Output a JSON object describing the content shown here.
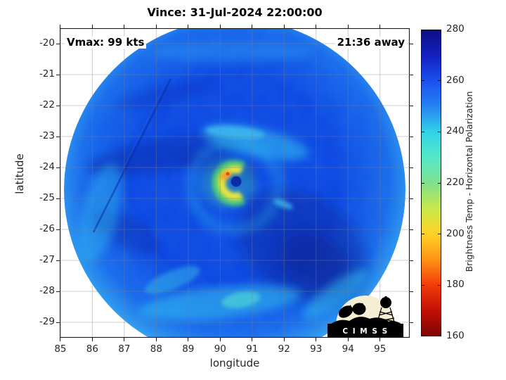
{
  "header": {
    "title": "Vince: 31-Jul-2024 22:00:00"
  },
  "plot": {
    "annotation_left": "Vmax: 99 kts",
    "annotation_right": "21:36 away"
  },
  "axes": {
    "xlabel": "longitude",
    "ylabel": "latitude",
    "x_ticks": [
      85,
      86,
      87,
      88,
      89,
      90,
      91,
      92,
      93,
      94,
      95
    ],
    "y_ticks": [
      -20,
      -21,
      -22,
      -23,
      -24,
      -25,
      -26,
      -27,
      -28,
      -29
    ],
    "x_range": [
      84.98,
      95.93
    ],
    "y_range": [
      -29.5,
      -19.5
    ]
  },
  "colorbar": {
    "label": "Brightness Temp - Horizontal Polarization",
    "min": 160,
    "max": 280,
    "ticks": [
      280,
      260,
      240,
      220,
      200,
      180,
      160
    ]
  },
  "logo": {
    "text": "C I M S S"
  },
  "chart_data": {
    "type": "heatmap",
    "title": "Vince: 31-Jul-2024 22:00:00",
    "xlabel": "longitude",
    "ylabel": "latitude",
    "xlim": [
      84.98,
      95.93
    ],
    "ylim": [
      -29.5,
      -19.5
    ],
    "grid": true,
    "annotations": [
      "Vmax: 99 kts",
      "21:36 away"
    ],
    "colorbar": {
      "label": "Brightness Temp - Horizontal Polarization",
      "range": [
        160,
        280
      ],
      "ticks": [
        160,
        180,
        200,
        220,
        240,
        260,
        280
      ],
      "colormap_values_to_colors": {
        "280": "#0d0f86",
        "260": "#1b50f0",
        "240": "#32d2e8",
        "220": "#7fe08c",
        "200": "#ffd226",
        "180": "#f23c0a",
        "160": "#7d0404"
      }
    },
    "storm": {
      "name": "Vince",
      "datetime": "31-Jul-2024 22:00:00",
      "vmax_kts": 99,
      "time_away": "21:36",
      "eye_lon": 90.5,
      "eye_lat": -24.5
    },
    "swath": {
      "shape": "circle",
      "center_lon": 90.45,
      "center_lat": -24.7,
      "radius_deg": 5.3,
      "background_brightness_temp_K": "250-275 (blues)",
      "eyewall_min_brightness_temp_K": "190-210 (yellow/orange crescent west of eye)",
      "warm_sector": "dark navy (~275 K) southeast of eye",
      "logo_text": "CIMSS"
    }
  }
}
